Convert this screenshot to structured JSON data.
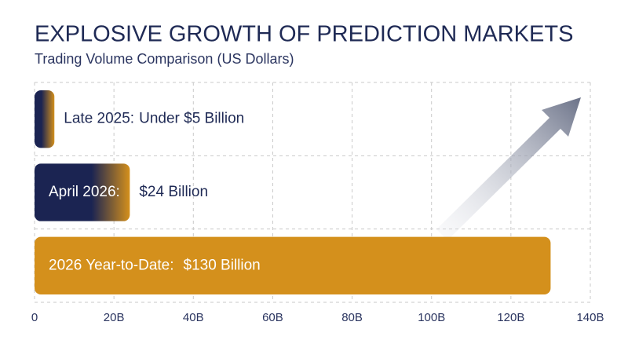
{
  "chart_data": {
    "type": "bar",
    "orientation": "horizontal",
    "title": "EXPLOSIVE GROWTH OF PREDICTION MARKETS",
    "subtitle": "Trading Volume Comparison (US Dollars)",
    "categories": [
      "Late 2025:",
      "April 2026:",
      "2026 Year-to-Date:"
    ],
    "values": [
      5,
      24,
      130
    ],
    "value_labels": [
      "Under $5 Billion",
      "$24 Billion",
      "$130 Billion"
    ],
    "colors": [
      "#1b2452",
      "#1b2452",
      "#d4901c"
    ],
    "color": "#d4901c",
    "xlim": [
      0,
      140
    ],
    "xticks": [
      0,
      {
        "value": 20,
        "label": "20B"
      },
      {
        "value": 40,
        "label": "40B"
      },
      {
        "value": 60,
        "label": "60B"
      },
      {
        "value": 80,
        "label": "80B"
      },
      {
        "value": 100,
        "label": "100B"
      },
      {
        "value": 120,
        "label": "120B"
      },
      {
        "value": 140,
        "label": "140B"
      }
    ],
    "grid": true
  }
}
